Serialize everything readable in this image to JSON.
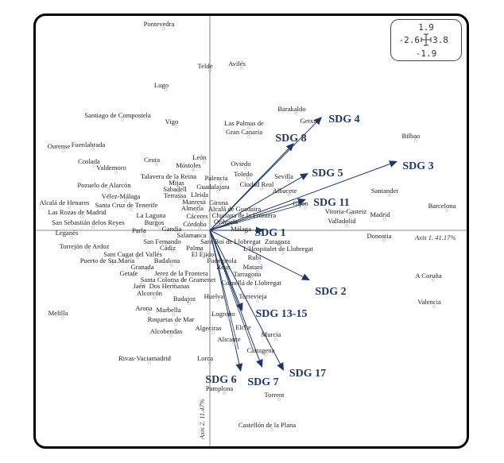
{
  "scale_box": {
    "top": "1.9",
    "left": "-2.6",
    "right": "3.8",
    "bottom": "-1.9"
  },
  "axes": {
    "x_label": "Axis 1. 41.17%",
    "y_label": "Axis 2. 11.47%"
  },
  "colors": {
    "vector": "#1f3864",
    "axis": "#888888",
    "frame": "#000000"
  },
  "vectors": [
    "SDG 1",
    "SDG 2",
    "SDG 3",
    "SDG 4",
    "SDG 5",
    "SDG 6",
    "SDG 7",
    "SDG 8",
    "SDG 11",
    "SDG 13-15",
    "SDG 17"
  ],
  "cities": [
    "Pontevedra",
    "Telde",
    "Avilés",
    "Lugo",
    "Santiago de Compostela",
    "Vigo",
    "Ourense",
    "Fuenlabrada",
    "Barakaldo",
    "Getxo",
    "Las Palmas de",
    "Gran Canaria",
    "Bilbao",
    "Coslada",
    "Ceuta",
    "León",
    "Valdemoro",
    "Móstoles",
    "Talavera de la Reina",
    "Palencia",
    "Oviedo",
    "Toledo",
    "Mijas",
    "Pozuelo de Alarcón",
    "Sabadell",
    "Guadalajara",
    "Ciudad Real",
    "Sevilla",
    "Albacete",
    "Vélez-Málaga",
    "Terrassa",
    "Lleida",
    "Girona",
    "Alcalá de Henares",
    "Santa Cruz de Tenerife",
    "Manresa",
    "Almería",
    "Alcalá de Guadaira",
    "Gijón",
    "Las Rozas de Madrid",
    "La Laguna",
    "Cáceres",
    "Chiclana de la Frontera",
    "Orihuela",
    "San Sebastián delos Reyes",
    "Burgos",
    "Gandía",
    "Córdoba",
    "Santander",
    "Madrid",
    "Vitoria-Gasteiz",
    "Valladolid",
    "Barcelona",
    "Leganés",
    "Parla",
    "Salamanca",
    "Málaga",
    "Donostia",
    "San Fernando",
    "Sant Boi de Llobregat",
    "Zaragoza",
    "Torrejón de Ardoz",
    "Cádiz",
    "Palma",
    "L'Hospitalet de Llobregat",
    "Sant Cugat del Vallés",
    "El Ejido",
    "Rubí",
    "Puerto de Sta.María",
    "Badalona",
    "Fuengirola",
    "Granada",
    "Jerez de la Frontera",
    "Reus",
    "Mataró",
    "Getafe",
    "Santa Coloma de Gramenet",
    "Tarragona",
    "Jaén",
    "Dos Hermanas",
    "Cornellá  de Llobregat",
    "Alcorcón",
    "Badajoz",
    "Huelva",
    "Torrevieja",
    "Melilla",
    "Arona",
    "Marbella",
    "Logroño",
    "Roquetas de Mar",
    "Algeciras",
    "Elche",
    "Alcobendas",
    "Alicante",
    "Murcia",
    "Cartagena",
    "Rivas-Vaciamadrid",
    "Lorca",
    "Pamplona",
    "Torrent",
    "Castellón de la Plana",
    "A Coruña",
    "Valencia"
  ]
}
